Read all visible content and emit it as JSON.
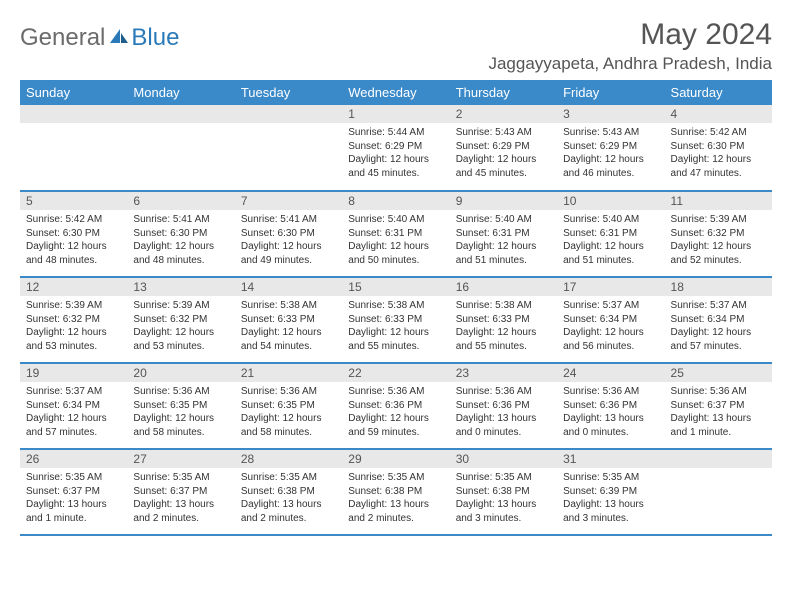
{
  "brand": {
    "part1": "General",
    "part2": "Blue"
  },
  "title": "May 2024",
  "location": "Jaggayyapeta, Andhra Pradesh, India",
  "colors": {
    "header_bg": "#3a89c9",
    "header_text": "#ffffff",
    "daynum_bg": "#e8e8e8",
    "border": "#3a89c9",
    "logo_gray": "#6b6b6b",
    "logo_blue": "#2a7ab9"
  },
  "day_labels": [
    "Sunday",
    "Monday",
    "Tuesday",
    "Wednesday",
    "Thursday",
    "Friday",
    "Saturday"
  ],
  "weeks": [
    [
      {
        "n": "",
        "sr": "",
        "ss": "",
        "dl": ""
      },
      {
        "n": "",
        "sr": "",
        "ss": "",
        "dl": ""
      },
      {
        "n": "",
        "sr": "",
        "ss": "",
        "dl": ""
      },
      {
        "n": "1",
        "sr": "5:44 AM",
        "ss": "6:29 PM",
        "dl": "12 hours and 45 minutes."
      },
      {
        "n": "2",
        "sr": "5:43 AM",
        "ss": "6:29 PM",
        "dl": "12 hours and 45 minutes."
      },
      {
        "n": "3",
        "sr": "5:43 AM",
        "ss": "6:29 PM",
        "dl": "12 hours and 46 minutes."
      },
      {
        "n": "4",
        "sr": "5:42 AM",
        "ss": "6:30 PM",
        "dl": "12 hours and 47 minutes."
      }
    ],
    [
      {
        "n": "5",
        "sr": "5:42 AM",
        "ss": "6:30 PM",
        "dl": "12 hours and 48 minutes."
      },
      {
        "n": "6",
        "sr": "5:41 AM",
        "ss": "6:30 PM",
        "dl": "12 hours and 48 minutes."
      },
      {
        "n": "7",
        "sr": "5:41 AM",
        "ss": "6:30 PM",
        "dl": "12 hours and 49 minutes."
      },
      {
        "n": "8",
        "sr": "5:40 AM",
        "ss": "6:31 PM",
        "dl": "12 hours and 50 minutes."
      },
      {
        "n": "9",
        "sr": "5:40 AM",
        "ss": "6:31 PM",
        "dl": "12 hours and 51 minutes."
      },
      {
        "n": "10",
        "sr": "5:40 AM",
        "ss": "6:31 PM",
        "dl": "12 hours and 51 minutes."
      },
      {
        "n": "11",
        "sr": "5:39 AM",
        "ss": "6:32 PM",
        "dl": "12 hours and 52 minutes."
      }
    ],
    [
      {
        "n": "12",
        "sr": "5:39 AM",
        "ss": "6:32 PM",
        "dl": "12 hours and 53 minutes."
      },
      {
        "n": "13",
        "sr": "5:39 AM",
        "ss": "6:32 PM",
        "dl": "12 hours and 53 minutes."
      },
      {
        "n": "14",
        "sr": "5:38 AM",
        "ss": "6:33 PM",
        "dl": "12 hours and 54 minutes."
      },
      {
        "n": "15",
        "sr": "5:38 AM",
        "ss": "6:33 PM",
        "dl": "12 hours and 55 minutes."
      },
      {
        "n": "16",
        "sr": "5:38 AM",
        "ss": "6:33 PM",
        "dl": "12 hours and 55 minutes."
      },
      {
        "n": "17",
        "sr": "5:37 AM",
        "ss": "6:34 PM",
        "dl": "12 hours and 56 minutes."
      },
      {
        "n": "18",
        "sr": "5:37 AM",
        "ss": "6:34 PM",
        "dl": "12 hours and 57 minutes."
      }
    ],
    [
      {
        "n": "19",
        "sr": "5:37 AM",
        "ss": "6:34 PM",
        "dl": "12 hours and 57 minutes."
      },
      {
        "n": "20",
        "sr": "5:36 AM",
        "ss": "6:35 PM",
        "dl": "12 hours and 58 minutes."
      },
      {
        "n": "21",
        "sr": "5:36 AM",
        "ss": "6:35 PM",
        "dl": "12 hours and 58 minutes."
      },
      {
        "n": "22",
        "sr": "5:36 AM",
        "ss": "6:36 PM",
        "dl": "12 hours and 59 minutes."
      },
      {
        "n": "23",
        "sr": "5:36 AM",
        "ss": "6:36 PM",
        "dl": "13 hours and 0 minutes."
      },
      {
        "n": "24",
        "sr": "5:36 AM",
        "ss": "6:36 PM",
        "dl": "13 hours and 0 minutes."
      },
      {
        "n": "25",
        "sr": "5:36 AM",
        "ss": "6:37 PM",
        "dl": "13 hours and 1 minute."
      }
    ],
    [
      {
        "n": "26",
        "sr": "5:35 AM",
        "ss": "6:37 PM",
        "dl": "13 hours and 1 minute."
      },
      {
        "n": "27",
        "sr": "5:35 AM",
        "ss": "6:37 PM",
        "dl": "13 hours and 2 minutes."
      },
      {
        "n": "28",
        "sr": "5:35 AM",
        "ss": "6:38 PM",
        "dl": "13 hours and 2 minutes."
      },
      {
        "n": "29",
        "sr": "5:35 AM",
        "ss": "6:38 PM",
        "dl": "13 hours and 2 minutes."
      },
      {
        "n": "30",
        "sr": "5:35 AM",
        "ss": "6:38 PM",
        "dl": "13 hours and 3 minutes."
      },
      {
        "n": "31",
        "sr": "5:35 AM",
        "ss": "6:39 PM",
        "dl": "13 hours and 3 minutes."
      },
      {
        "n": "",
        "sr": "",
        "ss": "",
        "dl": ""
      }
    ]
  ],
  "labels": {
    "sunrise": "Sunrise:",
    "sunset": "Sunset:",
    "daylight": "Daylight:"
  }
}
